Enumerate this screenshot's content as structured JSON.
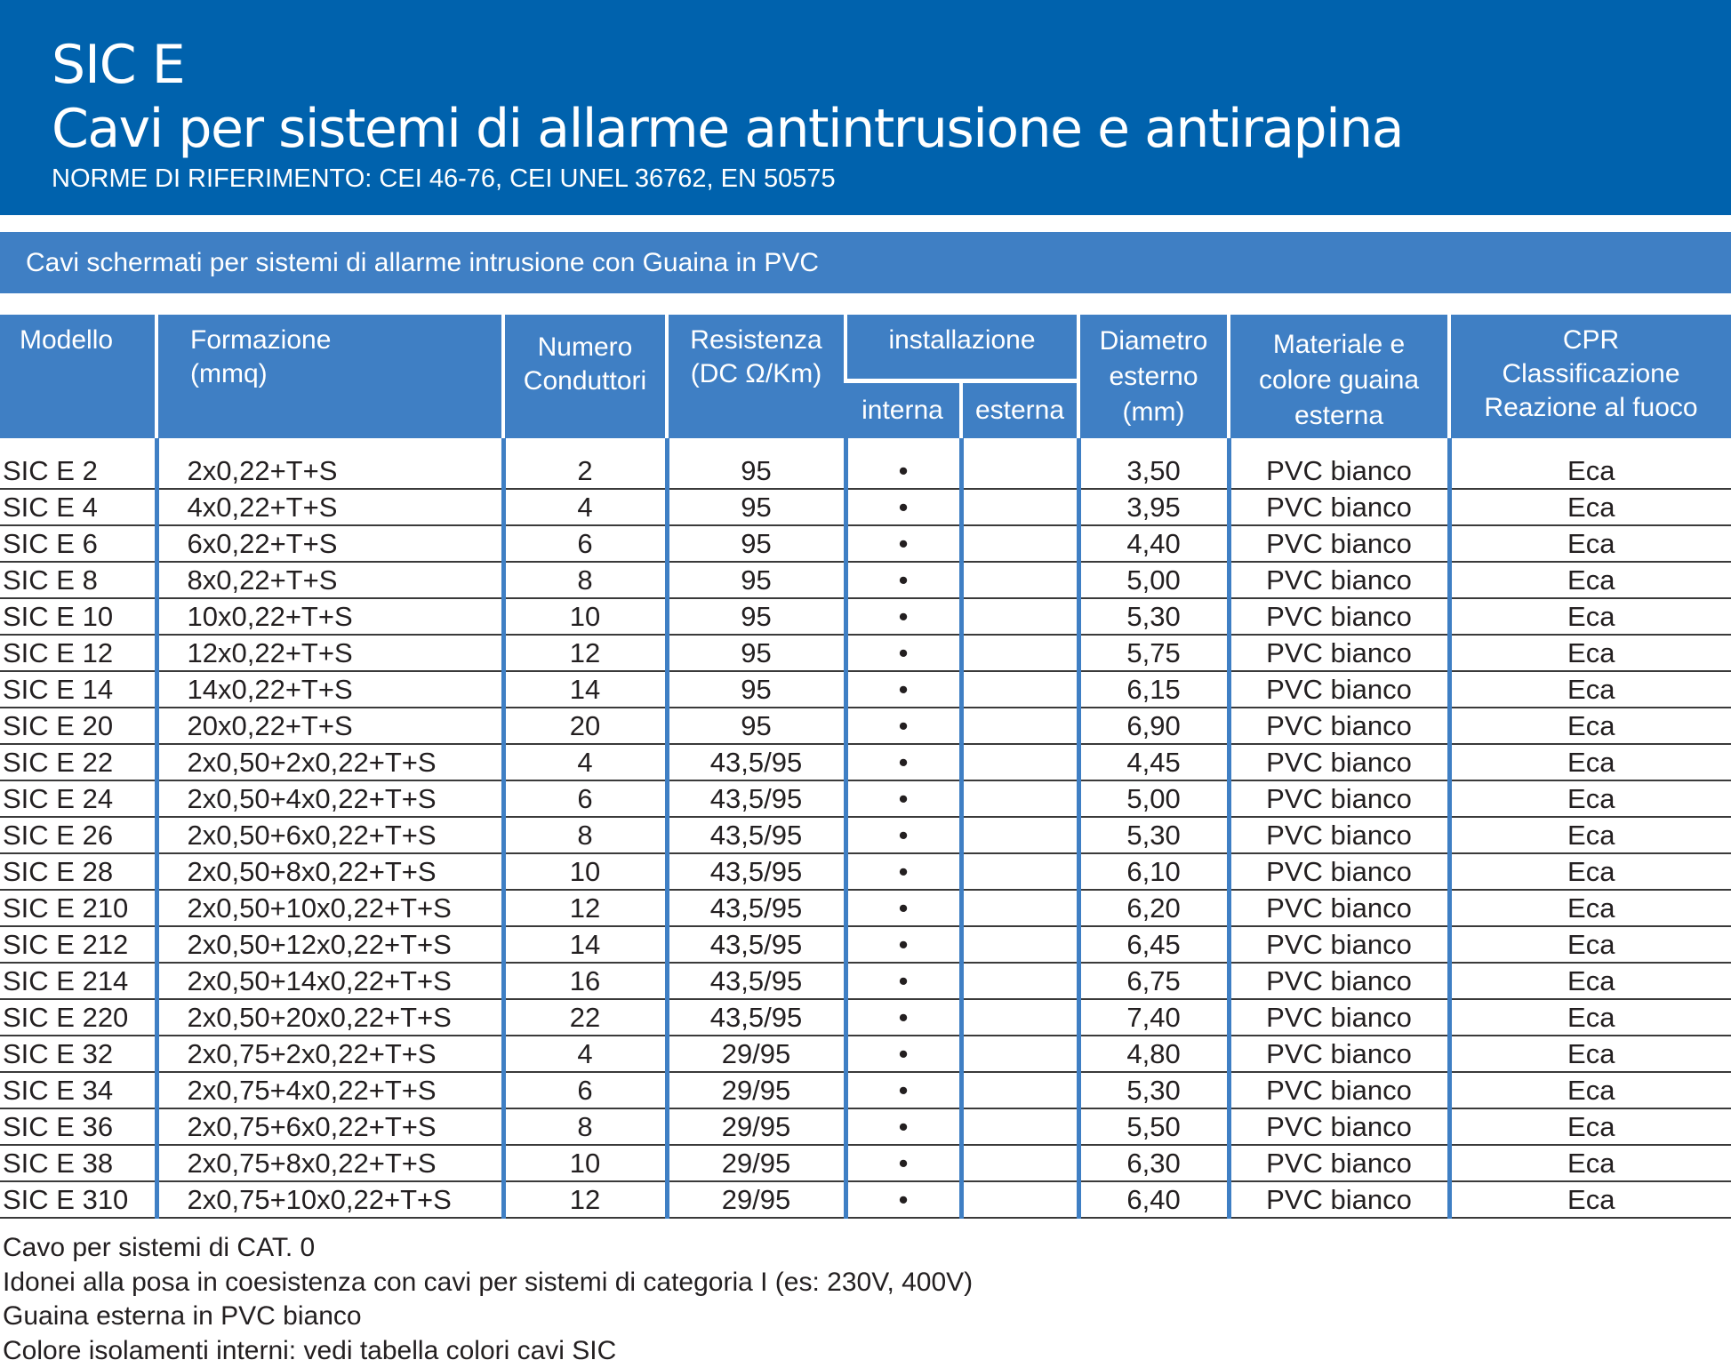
{
  "header": {
    "title": "SIC E",
    "subtitle": "Cavi per sistemi di allarme antintrusione e antirapina",
    "norms": "NORME DI RIFERIMENTO: CEI 46-76, CEI UNEL 36762, EN 50575",
    "color": "#0062ad"
  },
  "section": {
    "title": "Cavi schermati per sistemi di allarme intrusione con Guaina in PVC",
    "color": "#3f7fc4"
  },
  "columns": {
    "modello": "Modello",
    "formazione": "Formazione\n(mmq)",
    "numero": "Numero\nConduttori",
    "resistenza": "Resistenza\n(DC Ω/Km)",
    "installazione": "installazione",
    "interna": "interna",
    "esterna": "esterna",
    "diametro": "Diametro\nesterno\n(mm)",
    "materiale": "Materiale e\ncolore guaina\nesterna",
    "cpr": "CPR\nClassificazione\nReazione al fuoco"
  },
  "rows": [
    [
      "SIC E 2",
      "2x0,22+T+S",
      "2",
      "95",
      "•",
      "",
      "3,50",
      "PVC bianco",
      "Eca"
    ],
    [
      "SIC E 4",
      "4x0,22+T+S",
      "4",
      "95",
      "•",
      "",
      "3,95",
      "PVC bianco",
      "Eca"
    ],
    [
      "SIC E 6",
      "6x0,22+T+S",
      "6",
      "95",
      "•",
      "",
      "4,40",
      "PVC bianco",
      "Eca"
    ],
    [
      "SIC E 8",
      "8x0,22+T+S",
      "8",
      "95",
      "•",
      "",
      "5,00",
      "PVC bianco",
      "Eca"
    ],
    [
      "SIC E 10",
      "10x0,22+T+S",
      "10",
      "95",
      "•",
      "",
      "5,30",
      "PVC bianco",
      "Eca"
    ],
    [
      "SIC E 12",
      "12x0,22+T+S",
      "12",
      "95",
      "•",
      "",
      "5,75",
      "PVC bianco",
      "Eca"
    ],
    [
      "SIC E 14",
      "14x0,22+T+S",
      "14",
      "95",
      "•",
      "",
      "6,15",
      "PVC bianco",
      "Eca"
    ],
    [
      "SIC E 20",
      "20x0,22+T+S",
      "20",
      "95",
      "•",
      "",
      "6,90",
      "PVC bianco",
      "Eca"
    ],
    [
      "SIC E 22",
      "2x0,50+2x0,22+T+S",
      "4",
      "43,5/95",
      "•",
      "",
      "4,45",
      "PVC bianco",
      "Eca"
    ],
    [
      "SIC E 24",
      "2x0,50+4x0,22+T+S",
      "6",
      "43,5/95",
      "•",
      "",
      "5,00",
      "PVC bianco",
      "Eca"
    ],
    [
      "SIC E 26",
      "2x0,50+6x0,22+T+S",
      "8",
      "43,5/95",
      "•",
      "",
      "5,30",
      "PVC bianco",
      "Eca"
    ],
    [
      "SIC E 28",
      "2x0,50+8x0,22+T+S",
      "10",
      "43,5/95",
      "•",
      "",
      "6,10",
      "PVC bianco",
      "Eca"
    ],
    [
      "SIC E 210",
      "2x0,50+10x0,22+T+S",
      "12",
      "43,5/95",
      "•",
      "",
      "6,20",
      "PVC bianco",
      "Eca"
    ],
    [
      "SIC E 212",
      "2x0,50+12x0,22+T+S",
      "14",
      "43,5/95",
      "•",
      "",
      "6,45",
      "PVC bianco",
      "Eca"
    ],
    [
      "SIC E 214",
      "2x0,50+14x0,22+T+S",
      "16",
      "43,5/95",
      "•",
      "",
      "6,75",
      "PVC bianco",
      "Eca"
    ],
    [
      "SIC E 220",
      "2x0,50+20x0,22+T+S",
      "22",
      "43,5/95",
      "•",
      "",
      "7,40",
      "PVC bianco",
      "Eca"
    ],
    [
      "SIC E 32",
      "2x0,75+2x0,22+T+S",
      "4",
      "29/95",
      "•",
      "",
      "4,80",
      "PVC bianco",
      "Eca"
    ],
    [
      "SIC E 34",
      "2x0,75+4x0,22+T+S",
      "6",
      "29/95",
      "•",
      "",
      "5,30",
      "PVC bianco",
      "Eca"
    ],
    [
      "SIC E 36",
      "2x0,75+6x0,22+T+S",
      "8",
      "29/95",
      "•",
      "",
      "5,50",
      "PVC bianco",
      "Eca"
    ],
    [
      "SIC E 38",
      "2x0,75+8x0,22+T+S",
      "10",
      "29/95",
      "•",
      "",
      "6,30",
      "PVC bianco",
      "Eca"
    ],
    [
      "SIC E 310",
      "2x0,75+10x0,22+T+S",
      "12",
      "29/95",
      "•",
      "",
      "6,40",
      "PVC bianco",
      "Eca"
    ]
  ],
  "notes": [
    "Cavo per sistemi di CAT. 0",
    "Idonei alla posa in coesistenza con cavi per sistemi di categoria I (es: 230V, 400V)",
    "Guaina esterna in PVC bianco",
    "Colore isolamenti interni: vedi tabella colori cavi SIC"
  ]
}
